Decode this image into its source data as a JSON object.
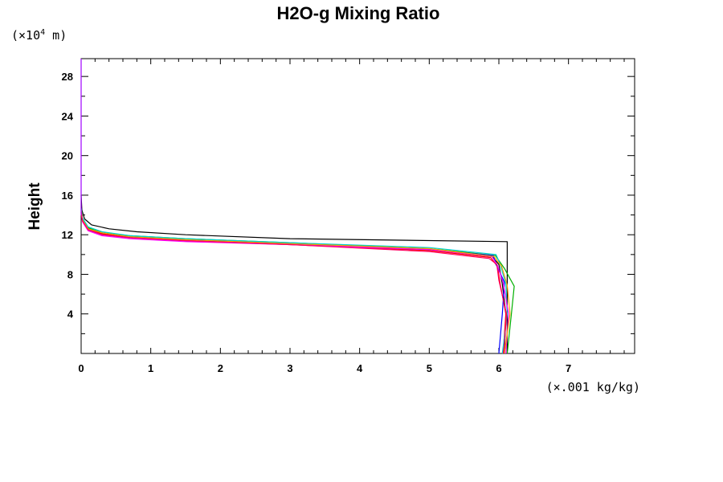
{
  "chart_data": {
    "type": "line",
    "title": "H2O-g Mixing Ratio",
    "ylabel": "Height",
    "xlabel": "",
    "y_unit_prefix": "(×10",
    "y_unit_exponent": "4",
    "y_unit_suffix": " m)",
    "x_unit": "(×.001 kg/kg)",
    "xlim": [
      0,
      7.95
    ],
    "ylim": [
      0,
      29.8
    ],
    "x_ticks": [
      "0",
      "1",
      "2",
      "3",
      "4",
      "5",
      "6",
      "7"
    ],
    "y_ticks": [
      "4",
      "8",
      "12",
      "16",
      "20",
      "24",
      "28"
    ],
    "grid": false,
    "legend": "none",
    "series": [
      {
        "color": "#000000",
        "x": [
          6.12,
          6.12,
          6.12,
          3.0,
          1.5,
          0.8,
          0.4,
          0.15,
          0.05,
          0.01,
          0.0
        ],
        "y": [
          0.0,
          5.0,
          11.3,
          11.6,
          12.0,
          12.3,
          12.6,
          13.0,
          13.6,
          14.5,
          16.0
        ]
      },
      {
        "color": "#000000",
        "x": [
          6.08,
          6.1,
          6.05,
          6.0,
          5.9,
          5.0,
          3.0,
          1.5,
          0.7,
          0.3,
          0.1,
          0.02,
          0.0
        ],
        "y": [
          0.0,
          4.0,
          7.0,
          9.0,
          9.8,
          10.5,
          11.1,
          11.5,
          11.8,
          12.2,
          12.7,
          13.6,
          14.5
        ]
      },
      {
        "color": "#ff0000",
        "x": [
          6.06,
          6.1,
          6.02,
          5.98,
          5.88,
          5.0,
          3.0,
          1.5,
          0.7,
          0.3,
          0.1,
          0.02,
          0.0
        ],
        "y": [
          0.0,
          4.0,
          7.0,
          8.8,
          9.7,
          10.4,
          11.0,
          11.4,
          11.7,
          12.1,
          12.6,
          13.5,
          14.4
        ]
      },
      {
        "color": "#00b000",
        "x": [
          6.12,
          6.18,
          6.22,
          6.08,
          5.95,
          5.0,
          3.0,
          1.5,
          0.7,
          0.3,
          0.1,
          0.02,
          0.0
        ],
        "y": [
          0.0,
          4.0,
          6.8,
          8.6,
          9.9,
          10.6,
          11.2,
          11.6,
          11.9,
          12.2,
          12.7,
          13.6,
          14.6
        ]
      },
      {
        "color": "#0000ff",
        "x": [
          6.0,
          6.05,
          6.08,
          5.96,
          5.92,
          5.0,
          3.0,
          1.5,
          0.7,
          0.3,
          0.1,
          0.02,
          0.0
        ],
        "y": [
          0.0,
          4.0,
          7.2,
          9.0,
          9.9,
          10.5,
          11.1,
          11.4,
          11.7,
          12.0,
          12.5,
          13.4,
          14.3
        ]
      },
      {
        "color": "#00d0d0",
        "x": [
          6.05,
          6.12,
          6.1,
          6.02,
          5.96,
          5.0,
          3.0,
          1.5,
          0.7,
          0.3,
          0.1,
          0.02,
          0.0
        ],
        "y": [
          0.0,
          4.0,
          7.0,
          9.0,
          10.0,
          10.7,
          11.2,
          11.6,
          11.9,
          12.3,
          12.8,
          13.7,
          14.7
        ]
      },
      {
        "color": "#ff00ff",
        "x": [
          6.1,
          6.14,
          6.06,
          5.98,
          5.9,
          5.0,
          3.0,
          1.5,
          0.7,
          0.3,
          0.1,
          0.02,
          0.0
        ],
        "y": [
          0.0,
          4.0,
          7.2,
          8.9,
          9.8,
          10.5,
          11.0,
          11.3,
          11.6,
          11.9,
          12.4,
          13.3,
          14.2
        ]
      },
      {
        "color": "#ffa000",
        "x": [
          6.08,
          6.16,
          6.12,
          6.04,
          5.93,
          5.0,
          3.0,
          1.5,
          0.7,
          0.3,
          0.1,
          0.02,
          0.0
        ],
        "y": [
          0.0,
          4.0,
          6.9,
          8.8,
          9.8,
          10.6,
          11.1,
          11.5,
          11.8,
          12.2,
          12.6,
          13.5,
          14.5
        ]
      },
      {
        "color": "#ff0060",
        "x": [
          6.07,
          6.11,
          6.0,
          5.97,
          5.86,
          5.0,
          3.0,
          1.5,
          0.7,
          0.3,
          0.1,
          0.02,
          0.0
        ],
        "y": [
          0.0,
          4.0,
          7.4,
          9.0,
          9.6,
          10.3,
          11.0,
          11.4,
          11.7,
          12.0,
          12.5,
          13.4,
          14.3
        ]
      },
      {
        "color": "#a000ff",
        "x": [
          0.0,
          0.0
        ],
        "y": [
          14.0,
          29.8
        ]
      }
    ]
  }
}
